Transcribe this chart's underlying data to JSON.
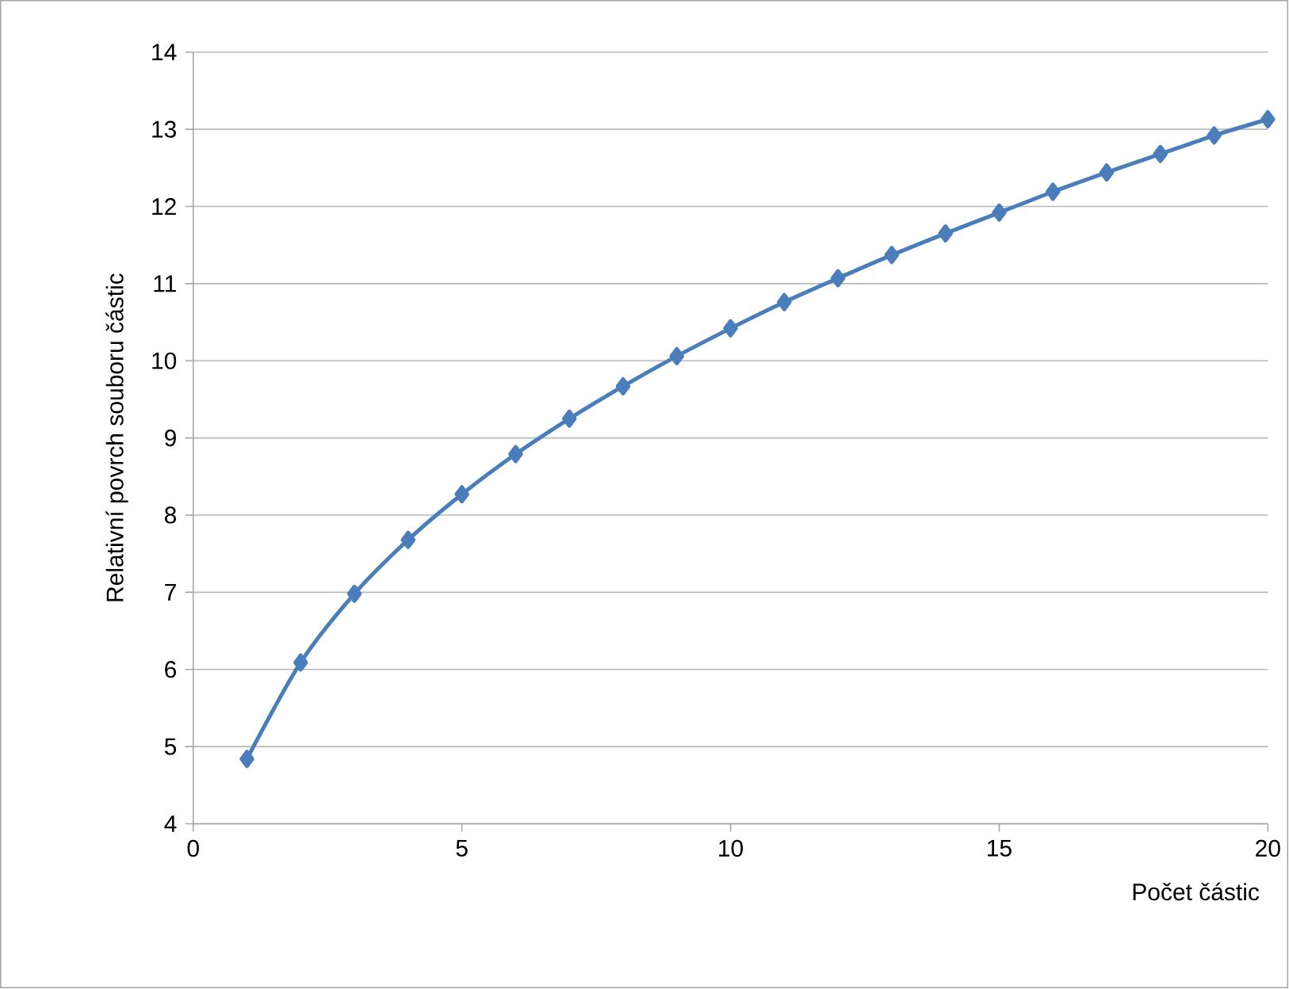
{
  "chart_data": {
    "type": "line",
    "xlabel": "Počet částic",
    "ylabel": "Relativní povrch souboru částic",
    "x": [
      1,
      2,
      3,
      4,
      5,
      6,
      7,
      8,
      9,
      10,
      11,
      12,
      13,
      14,
      15,
      16,
      17,
      18,
      19,
      20
    ],
    "values": [
      4.84,
      6.09,
      6.98,
      7.68,
      8.27,
      8.79,
      9.25,
      9.67,
      10.06,
      10.42,
      10.76,
      11.07,
      11.37,
      11.65,
      11.92,
      12.19,
      12.44,
      12.68,
      12.92,
      13.13
    ],
    "color": "#4a7ebb",
    "marker": "diamond",
    "line_style": "solid",
    "xlim": [
      0,
      20
    ],
    "ylim": [
      4,
      14
    ],
    "xticks": [
      0,
      5,
      10,
      15,
      20
    ],
    "yticks": [
      4,
      5,
      6,
      7,
      8,
      9,
      10,
      11,
      12,
      13,
      14
    ],
    "grid": "y"
  }
}
